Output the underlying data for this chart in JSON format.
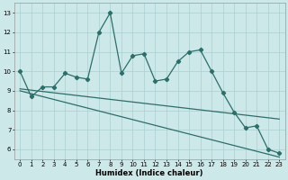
{
  "title": "",
  "xlabel": "Humidex (Indice chaleur)",
  "xlim": [
    -0.5,
    23.5
  ],
  "ylim": [
    5.5,
    13.5
  ],
  "yticks": [
    6,
    7,
    8,
    9,
    10,
    11,
    12,
    13
  ],
  "xticks": [
    0,
    1,
    2,
    3,
    4,
    5,
    6,
    7,
    8,
    9,
    10,
    11,
    12,
    13,
    14,
    15,
    16,
    17,
    18,
    19,
    20,
    21,
    22,
    23
  ],
  "line1_x": [
    0,
    1,
    2,
    3,
    4,
    5,
    6,
    7,
    8,
    9,
    10,
    11,
    12,
    13,
    14,
    15,
    16,
    17,
    18,
    19,
    20,
    21,
    22,
    23
  ],
  "line1_y": [
    10.0,
    8.7,
    9.2,
    9.2,
    9.9,
    9.7,
    9.6,
    12.0,
    13.0,
    9.9,
    10.8,
    10.9,
    9.5,
    9.6,
    10.5,
    11.0,
    11.1,
    10.0,
    8.9,
    7.9,
    7.1,
    7.2,
    6.0,
    5.8
  ],
  "line2_x": [
    0,
    23
  ],
  "line2_y": [
    9.1,
    7.55
  ],
  "line3_x": [
    0,
    23
  ],
  "line3_y": [
    9.0,
    5.6
  ],
  "line_color": "#2d6e6a",
  "bg_color": "#cce8e8",
  "grid_color": "#aacfcf",
  "marker": "D",
  "markersize": 2.2,
  "linewidth": 0.9,
  "tick_fontsize": 5.0,
  "xlabel_fontsize": 6.0
}
